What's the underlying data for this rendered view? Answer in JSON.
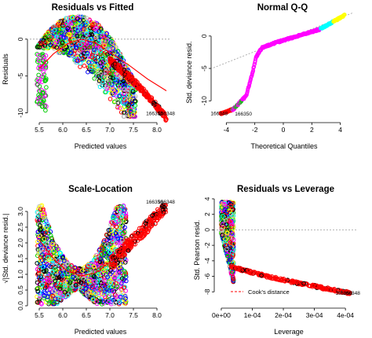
{
  "chart_data": [
    {
      "type": "scatter",
      "title": "Residuals vs Fitted",
      "xlabel": "Predicted values",
      "ylabel": "Residuals",
      "xlim": [
        5.3,
        8.3
      ],
      "ylim": [
        -11,
        3.5
      ],
      "xticks": [
        "5.5",
        "6.0",
        "6.5",
        "7.0",
        "7.5",
        "8.0"
      ],
      "xtick_values": [
        5.5,
        6.0,
        6.5,
        7.0,
        7.5,
        8.0
      ],
      "yticks": [
        "-10",
        "-5",
        "0"
      ],
      "ytick_values": [
        -10,
        -5,
        0
      ],
      "reference_line": 0,
      "smooth": {
        "color": "#ff0000",
        "x": [
          5.5,
          5.8,
          6.1,
          6.4,
          6.7,
          7.0,
          7.4,
          7.8,
          8.2
        ],
        "y": [
          -4.0,
          -2.0,
          -0.6,
          0.0,
          -0.5,
          -1.8,
          -3.5,
          -5.4,
          -7.0
        ]
      },
      "annotations": [
        {
          "text": "166350",
          "x": 7.95,
          "y": -10.3
        },
        {
          "text": "166348",
          "x": 8.2,
          "y": -10.3
        }
      ]
    },
    {
      "type": "scatter",
      "title": "Normal Q-Q",
      "xlabel": "Theoretical Quantiles",
      "ylabel": "Std. deviance resid.",
      "xlim": [
        -4.9,
        4.9
      ],
      "ylim": [
        -13,
        3.5
      ],
      "xticks": [
        "-4",
        "-2",
        "0",
        "2",
        "4"
      ],
      "xtick_values": [
        -4,
        -2,
        0,
        2,
        4
      ],
      "yticks": [
        "-10",
        "-5",
        "0"
      ],
      "ytick_values": [
        -10,
        -5,
        0
      ],
      "reference_line": {
        "x": [
          -4.9,
          4.9
        ],
        "y": [
          -4.9,
          3.6
        ]
      },
      "curve": {
        "x": [
          -4.4,
          -3.5,
          -2.6,
          -2.2,
          -1.9,
          -1.5,
          -0.5,
          1.0,
          2.5,
          3.5,
          4.3
        ],
        "y": [
          -12.0,
          -11.3,
          -9.2,
          -6.0,
          -3.2,
          -1.8,
          -1.0,
          0.0,
          1.0,
          2.2,
          3.2
        ]
      },
      "annotations": [
        {
          "text": "166348",
          "x": -4.5,
          "y": -12.2
        },
        {
          "text": "166350",
          "x": -2.8,
          "y": -12.3
        }
      ]
    },
    {
      "type": "scatter",
      "title": "Scale-Location",
      "xlabel": "Predicted values",
      "ylabel": "√|Std. deviance resid.|",
      "xlim": [
        5.3,
        8.3
      ],
      "ylim": [
        0,
        3.45
      ],
      "xticks": [
        "5.5",
        "6.0",
        "6.5",
        "7.0",
        "7.5",
        "8.0"
      ],
      "xtick_values": [
        5.5,
        6.0,
        6.5,
        7.0,
        7.5,
        8.0
      ],
      "yticks": [
        "0.0",
        "0.5",
        "1.0",
        "1.5",
        "2.0",
        "2.5",
        "3.0"
      ],
      "ytick_values": [
        0.0,
        0.5,
        1.0,
        1.5,
        2.0,
        2.5,
        3.0
      ],
      "smooth": {
        "color": "#ff0000",
        "x": [
          5.5,
          5.8,
          6.1,
          6.4,
          6.7,
          7.0,
          7.4,
          7.8,
          8.2
        ],
        "y": [
          2.1,
          1.5,
          1.1,
          0.95,
          1.05,
          1.4,
          1.95,
          2.5,
          3.0
        ]
      },
      "annotations": [
        {
          "text": "166350",
          "x": 7.95,
          "y": 3.25
        },
        {
          "text": "166348",
          "x": 8.2,
          "y": 3.25
        }
      ]
    },
    {
      "type": "scatter",
      "title": "Residuals vs Leverage",
      "xlabel": "Leverage",
      "ylabel": "Std. Pearson resid.",
      "xlim": [
        -1.5e-05,
        0.000435
      ],
      "ylim": [
        -9.8,
        4.2
      ],
      "xticks": [
        "0e+00",
        "1e-04",
        "2e-04",
        "3e-04",
        "4e-04"
      ],
      "xtick_values": [
        0,
        0.0001,
        0.0002,
        0.0003,
        0.0004
      ],
      "yticks": [
        "-8",
        "-6",
        "-4",
        "-2",
        "0",
        "2",
        "4"
      ],
      "ytick_values": [
        -8,
        -6,
        -4,
        -2,
        0,
        2,
        4
      ],
      "reference_line": 0,
      "legend": {
        "label": "Cook's distance",
        "placement": "bottom-left",
        "color": "#ff0000"
      },
      "annotations": [
        {
          "text": "166350",
          "x": 0.000395,
          "y": -8.4
        },
        {
          "text": "166348",
          "x": 0.00042,
          "y": -8.4
        }
      ]
    }
  ],
  "colors": {
    "axis": "#000000",
    "reference": "#9e9e9e",
    "smooth": "#ff0000",
    "point_palette": [
      "#000000",
      "#ff0000",
      "#00cd00",
      "#0000ff",
      "#00ffff",
      "#ff00ff",
      "#ffff00",
      "#bebebe"
    ]
  }
}
